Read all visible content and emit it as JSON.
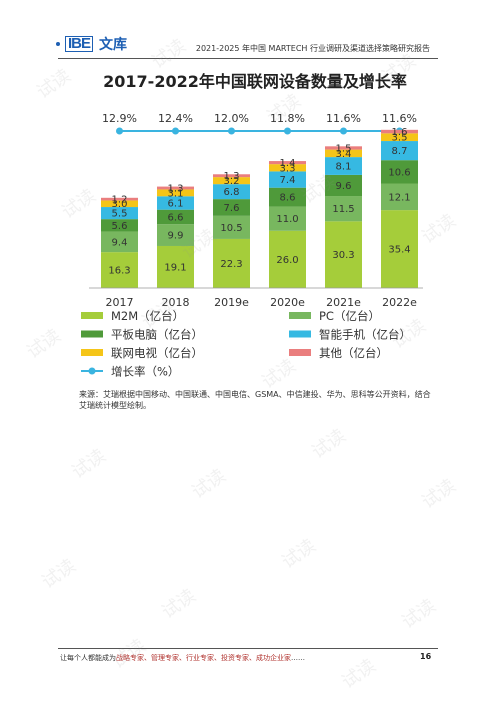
{
  "header": {
    "logo_mark": "IBE",
    "logo_text": "文库",
    "report_title": "2021-2025 年中国 MARTECH 行业调研及渠道选择策略研究报告"
  },
  "source_note": "来源：艾瑞根据中国移动、中国联通、中国电信、GSMA、中信建投、华为、思科等公开资料，结合艾瑞统计模型绘制。",
  "footer": {
    "prefix": "让每个人都能成为",
    "roles": "战略专家、管理专家、行业专家、投资专家、成功企业家",
    "suffix": "……",
    "page_number": "16"
  },
  "watermark_text": "试读",
  "colors": {
    "m2m": "#a5cd3a",
    "pc": "#78b75f",
    "tablet": "#4f9a3a",
    "phone": "#36b9e2",
    "tv": "#f5c518",
    "other": "#ea7e7e",
    "growth": "#3ab4e0"
  },
  "chart_data": {
    "type": "bar",
    "stacked": true,
    "title": "2017-2022年中国联网设备数量及增长率",
    "categories": [
      "2017",
      "2018",
      "2019e",
      "2020e",
      "2021e",
      "2022e"
    ],
    "series": [
      {
        "name": "M2M（亿台）",
        "key": "m2m",
        "values": [
          16.3,
          19.1,
          22.3,
          26.0,
          30.3,
          35.4
        ]
      },
      {
        "name": "PC（亿台）",
        "key": "pc",
        "values": [
          9.4,
          9.9,
          10.5,
          11.0,
          11.5,
          12.1
        ]
      },
      {
        "name": "平板电脑（亿台）",
        "key": "tablet",
        "values": [
          5.6,
          6.6,
          7.6,
          8.6,
          9.6,
          10.6
        ]
      },
      {
        "name": "智能手机（亿台）",
        "key": "phone",
        "values": [
          5.5,
          6.1,
          6.8,
          7.4,
          8.1,
          8.7
        ]
      },
      {
        "name": "联网电视（亿台）",
        "key": "tv",
        "values": [
          3.0,
          3.1,
          3.2,
          3.3,
          3.4,
          3.5
        ]
      },
      {
        "name": "其他（亿台）",
        "key": "other",
        "values": [
          1.2,
          1.3,
          1.3,
          1.4,
          1.5,
          1.6
        ]
      }
    ],
    "growth": {
      "name": "增长率（%）",
      "key": "growth",
      "values": [
        "12.9%",
        "12.4%",
        "12.0%",
        "11.8%",
        "11.6%",
        "11.6%"
      ]
    },
    "legend_position": "bottom",
    "grid": false
  }
}
